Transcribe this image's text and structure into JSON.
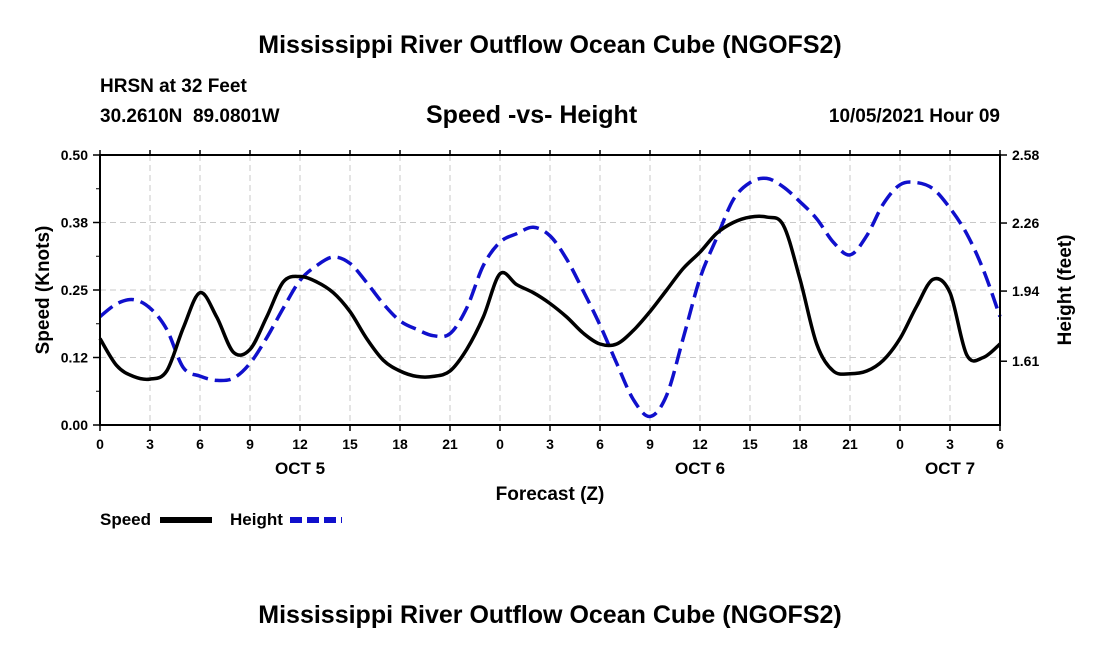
{
  "header": {
    "title": "Mississippi River Outflow Ocean Cube (NGOFS2)",
    "station": "HRSN at 32 Feet",
    "coords": "30.2610N  89.0801W",
    "subtitle": "Speed -vs- Height",
    "datetime": "10/05/2021 Hour 09"
  },
  "footer": {
    "title": "Mississippi River Outflow Ocean Cube (NGOFS2)"
  },
  "chart_data": {
    "type": "line",
    "title": "Speed -vs- Height",
    "xlabel": "Forecast (Z)",
    "ylabel": "Speed (Knots)",
    "y2label": "Height (feet)",
    "x_range": [
      0,
      54
    ],
    "ylim": [
      0.0,
      0.5
    ],
    "y2lim": [
      1.31,
      2.58
    ],
    "y_ticks": [
      "0.00",
      "0.12",
      "0.25",
      "0.38",
      "0.50"
    ],
    "y_tick_values": [
      0.0,
      0.125,
      0.25,
      0.375,
      0.5
    ],
    "y2_ticks": [
      "1.61",
      "1.94",
      "2.26",
      "2.58"
    ],
    "y2_tick_values": [
      1.61,
      1.94,
      2.26,
      2.58
    ],
    "x_ticks": [
      "0",
      "3",
      "6",
      "9",
      "12",
      "15",
      "18",
      "21",
      "0",
      "3",
      "6",
      "9",
      "12",
      "15",
      "18",
      "21",
      "0",
      "3",
      "6"
    ],
    "day_labels": [
      {
        "label": "OCT 5",
        "hour": 12
      },
      {
        "label": "OCT 6",
        "hour": 36
      },
      {
        "label": "OCT 7",
        "hour": 51
      }
    ],
    "grid": true,
    "legend": [
      {
        "name": "Speed",
        "color": "#000000",
        "dash": "solid"
      },
      {
        "name": "Height",
        "color": "#1010cc",
        "dash": "dashed"
      }
    ],
    "series": [
      {
        "name": "Speed",
        "axis": "left",
        "color": "#000000",
        "x": [
          0,
          1,
          2,
          3,
          4,
          5,
          6,
          7,
          8,
          9,
          10,
          11,
          12,
          13,
          14,
          15,
          16,
          17,
          18,
          19,
          20,
          21,
          22,
          23,
          24,
          25,
          26,
          27,
          28,
          29,
          30,
          31,
          32,
          33,
          34,
          35,
          36,
          37,
          38,
          39,
          40,
          41,
          42,
          43,
          44,
          45,
          46,
          47,
          48,
          49,
          50,
          51,
          52,
          53,
          54
        ],
        "values": [
          0.16,
          0.11,
          0.09,
          0.085,
          0.1,
          0.18,
          0.245,
          0.2,
          0.135,
          0.14,
          0.2,
          0.265,
          0.275,
          0.265,
          0.245,
          0.21,
          0.16,
          0.12,
          0.1,
          0.09,
          0.09,
          0.1,
          0.14,
          0.2,
          0.28,
          0.26,
          0.245,
          0.225,
          0.2,
          0.17,
          0.15,
          0.15,
          0.175,
          0.21,
          0.25,
          0.29,
          0.32,
          0.355,
          0.375,
          0.385,
          0.385,
          0.37,
          0.27,
          0.15,
          0.1,
          0.095,
          0.1,
          0.12,
          0.16,
          0.22,
          0.27,
          0.245,
          0.13,
          0.125,
          0.15
        ]
      },
      {
        "name": "Height",
        "axis": "right",
        "color": "#1010cc",
        "x": [
          0,
          1,
          2,
          3,
          4,
          5,
          6,
          7,
          8,
          9,
          10,
          11,
          12,
          13,
          14,
          15,
          16,
          17,
          18,
          19,
          20,
          21,
          22,
          23,
          24,
          25,
          26,
          27,
          28,
          29,
          30,
          31,
          32,
          33,
          34,
          35,
          36,
          37,
          38,
          39,
          40,
          41,
          42,
          43,
          44,
          45,
          46,
          47,
          48,
          49,
          50,
          51,
          52,
          53,
          54
        ],
        "values": [
          1.82,
          1.88,
          1.9,
          1.86,
          1.76,
          1.58,
          1.54,
          1.52,
          1.53,
          1.6,
          1.72,
          1.86,
          1.99,
          2.06,
          2.1,
          2.07,
          1.98,
          1.88,
          1.8,
          1.76,
          1.73,
          1.74,
          1.86,
          2.06,
          2.17,
          2.21,
          2.24,
          2.2,
          2.09,
          1.94,
          1.78,
          1.6,
          1.43,
          1.35,
          1.45,
          1.72,
          2.0,
          2.19,
          2.37,
          2.45,
          2.47,
          2.43,
          2.36,
          2.28,
          2.17,
          2.11,
          2.2,
          2.35,
          2.44,
          2.45,
          2.42,
          2.33,
          2.21,
          2.04,
          1.82
        ]
      }
    ]
  }
}
